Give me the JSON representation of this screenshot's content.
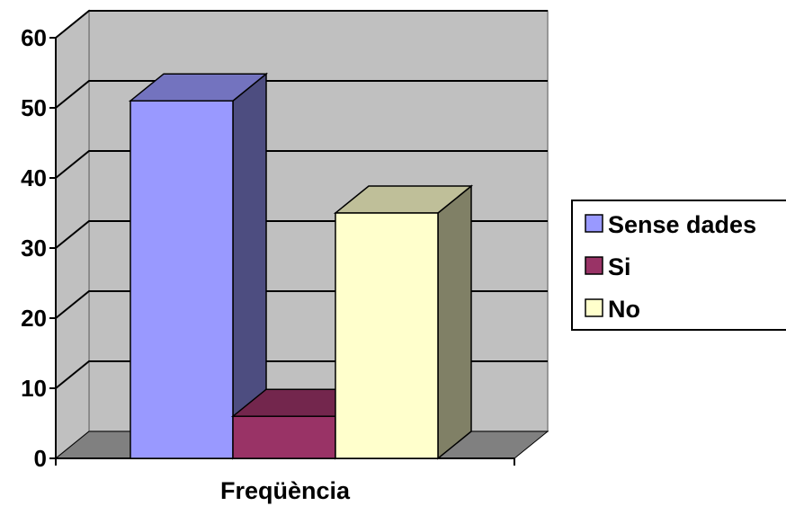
{
  "chart_data": {
    "type": "bar",
    "categories": [
      "Freqüència"
    ],
    "series": [
      {
        "name": "Sense dades",
        "values": [
          51
        ],
        "color": "#9999ff"
      },
      {
        "name": "Si",
        "values": [
          6
        ],
        "color": "#993366"
      },
      {
        "name": "No",
        "values": [
          35
        ],
        "color": "#ffffcc"
      }
    ],
    "ylim": [
      0,
      60
    ],
    "yticks": [
      "0",
      "10",
      "20",
      "30",
      "40",
      "50",
      "60"
    ],
    "grid": true,
    "legend_position": "right",
    "title": "",
    "xlabel": "",
    "ylabel": ""
  }
}
